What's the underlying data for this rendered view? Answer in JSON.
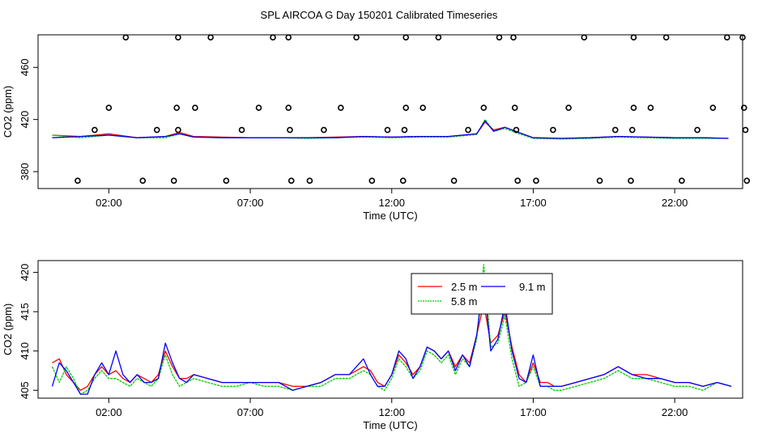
{
  "title": "SPL AIRCOA G  Day 150201  Calibrated Timeseries",
  "colors": {
    "series_2_5": "#ff0000",
    "series_5_8": "#00cc00",
    "series_9_1": "#0000ff",
    "axis": "#000000",
    "background": "#ffffff"
  },
  "chart_data": [
    {
      "type": "scatter+line",
      "xlabel": "Time (UTC)",
      "ylabel": "CO2 (ppm)",
      "x_unit": "hours UTC",
      "xlim": [
        -0.5,
        24.4
      ],
      "ylim": [
        367,
        485
      ],
      "xticks": [
        2,
        7,
        12,
        17,
        22
      ],
      "xtick_labels": [
        "02:00",
        "07:00",
        "12:00",
        "17:00",
        "22:00"
      ],
      "yticks": [
        380,
        420,
        460
      ],
      "ytick_labels": [
        "380",
        "420",
        "460"
      ],
      "calibration_points": [
        {
          "x": 0.9,
          "y": 373
        },
        {
          "x": 1.5,
          "y": 412
        },
        {
          "x": 2.0,
          "y": 429
        },
        {
          "x": 2.6,
          "y": 483
        },
        {
          "x": 3.2,
          "y": 373
        },
        {
          "x": 3.7,
          "y": 412
        },
        {
          "x": 4.3,
          "y": 373
        },
        {
          "x": 4.4,
          "y": 429
        },
        {
          "x": 4.45,
          "y": 412
        },
        {
          "x": 4.45,
          "y": 483
        },
        {
          "x": 5.05,
          "y": 429
        },
        {
          "x": 5.6,
          "y": 483
        },
        {
          "x": 6.15,
          "y": 373
        },
        {
          "x": 6.7,
          "y": 412
        },
        {
          "x": 7.3,
          "y": 429
        },
        {
          "x": 7.8,
          "y": 483
        },
        {
          "x": 8.35,
          "y": 429
        },
        {
          "x": 8.35,
          "y": 483
        },
        {
          "x": 8.4,
          "y": 412
        },
        {
          "x": 8.45,
          "y": 373
        },
        {
          "x": 9.1,
          "y": 373
        },
        {
          "x": 9.6,
          "y": 412
        },
        {
          "x": 10.2,
          "y": 429
        },
        {
          "x": 10.75,
          "y": 483
        },
        {
          "x": 11.3,
          "y": 373
        },
        {
          "x": 11.85,
          "y": 412
        },
        {
          "x": 12.4,
          "y": 373
        },
        {
          "x": 12.45,
          "y": 412
        },
        {
          "x": 12.5,
          "y": 429
        },
        {
          "x": 12.5,
          "y": 483
        },
        {
          "x": 13.1,
          "y": 429
        },
        {
          "x": 13.65,
          "y": 483
        },
        {
          "x": 14.2,
          "y": 373
        },
        {
          "x": 14.7,
          "y": 412
        },
        {
          "x": 15.25,
          "y": 429
        },
        {
          "x": 15.8,
          "y": 483
        },
        {
          "x": 16.3,
          "y": 483
        },
        {
          "x": 16.35,
          "y": 429
        },
        {
          "x": 16.4,
          "y": 412
        },
        {
          "x": 16.45,
          "y": 373
        },
        {
          "x": 17.1,
          "y": 373
        },
        {
          "x": 17.7,
          "y": 412
        },
        {
          "x": 18.25,
          "y": 429
        },
        {
          "x": 18.8,
          "y": 483
        },
        {
          "x": 19.35,
          "y": 373
        },
        {
          "x": 19.9,
          "y": 412
        },
        {
          "x": 20.45,
          "y": 373
        },
        {
          "x": 20.5,
          "y": 412
        },
        {
          "x": 20.55,
          "y": 429
        },
        {
          "x": 20.55,
          "y": 483
        },
        {
          "x": 21.15,
          "y": 429
        },
        {
          "x": 21.7,
          "y": 483
        },
        {
          "x": 22.25,
          "y": 373
        },
        {
          "x": 22.8,
          "y": 412
        },
        {
          "x": 23.35,
          "y": 429
        },
        {
          "x": 23.85,
          "y": 483
        },
        {
          "x": 24.4,
          "y": 483
        },
        {
          "x": 24.45,
          "y": 429
        },
        {
          "x": 24.5,
          "y": 412
        },
        {
          "x": 24.55,
          "y": 373
        }
      ],
      "series": [
        {
          "name": "2.5 m",
          "color": "#ff0000",
          "x": [
            0,
            1,
            2,
            3,
            4,
            4.5,
            5,
            6,
            7,
            8,
            9,
            10,
            11,
            12,
            13,
            14,
            15,
            15.3,
            15.6,
            16,
            16.5,
            17,
            18,
            19,
            20,
            21,
            22,
            23,
            23.9
          ],
          "y": [
            408,
            407,
            409,
            406,
            407,
            410,
            407,
            406.5,
            406,
            406,
            406,
            406.5,
            407,
            406.5,
            407,
            407,
            409,
            418,
            412,
            414,
            410,
            406,
            405.5,
            406,
            407,
            406.5,
            406,
            406,
            405.5
          ]
        },
        {
          "name": "5.8 m",
          "color": "#00cc00",
          "x": [
            0,
            1,
            2,
            3,
            4,
            4.5,
            5,
            6,
            7,
            8,
            9,
            10,
            11,
            12,
            13,
            14,
            15,
            15.3,
            15.6,
            16,
            16.5,
            17,
            18,
            19,
            20,
            21,
            22,
            23,
            23.9
          ],
          "y": [
            408,
            406,
            408,
            406,
            406,
            409,
            406.5,
            406,
            406,
            406,
            405.5,
            406,
            406.5,
            406,
            406.5,
            406.5,
            408.5,
            420,
            411,
            413,
            409,
            405.5,
            405,
            405.5,
            406.5,
            406,
            405.5,
            405.5,
            405.5
          ]
        },
        {
          "name": "9.1 m",
          "color": "#0000ff",
          "x": [
            0,
            1,
            2,
            3,
            4,
            4.5,
            5,
            6,
            7,
            8,
            9,
            10,
            11,
            12,
            13,
            14,
            15,
            15.3,
            15.6,
            16,
            16.5,
            17,
            18,
            19,
            20,
            21,
            22,
            23,
            23.9
          ],
          "y": [
            406,
            407,
            408,
            406,
            407,
            409,
            406.5,
            406,
            406,
            406,
            406,
            406,
            407,
            406.5,
            407,
            407,
            409,
            419,
            411,
            414,
            410,
            406,
            405.5,
            406,
            407,
            406.5,
            406,
            406,
            405.5
          ]
        }
      ]
    },
    {
      "type": "line",
      "xlabel": "Time (UTC)",
      "ylabel": "CO2 (ppm)",
      "x_unit": "hours UTC",
      "xlim": [
        -0.5,
        24.4
      ],
      "ylim": [
        404,
        421.5
      ],
      "xticks": [
        2,
        7,
        12,
        17,
        22
      ],
      "xtick_labels": [
        "02:00",
        "07:00",
        "12:00",
        "17:00",
        "22:00"
      ],
      "yticks": [
        405,
        410,
        415,
        420
      ],
      "ytick_labels": [
        "405",
        "410",
        "415",
        "420"
      ],
      "legend": {
        "placement": "top-right of center",
        "entries": [
          "2.5 m",
          "5.8 m",
          "9.1 m"
        ]
      },
      "series": [
        {
          "name": "2.5 m",
          "color": "#ff0000",
          "x": [
            0,
            0.25,
            0.5,
            0.75,
            1,
            1.25,
            1.5,
            1.75,
            2,
            2.25,
            2.5,
            2.75,
            3,
            3.25,
            3.5,
            3.75,
            4,
            4.25,
            4.5,
            4.75,
            5,
            5.5,
            6,
            6.5,
            7,
            7.5,
            8,
            8.5,
            9,
            9.5,
            10,
            10.5,
            11,
            11.25,
            11.5,
            11.75,
            12,
            12.25,
            12.5,
            12.75,
            13,
            13.25,
            13.5,
            13.75,
            14,
            14.25,
            14.5,
            14.75,
            15,
            15.25,
            15.5,
            15.75,
            16,
            16.25,
            16.5,
            16.75,
            17,
            17.25,
            17.5,
            17.75,
            18,
            18.5,
            19,
            19.5,
            20,
            20.5,
            21,
            21.5,
            22,
            22.5,
            23,
            23.5,
            24
          ],
          "y": [
            408.5,
            409,
            407,
            406,
            405,
            405.5,
            407,
            408,
            407,
            407.5,
            406.5,
            406,
            407,
            406.5,
            406,
            407,
            410,
            408,
            406.5,
            406.5,
            407,
            406.5,
            406,
            406,
            406,
            406,
            406,
            405.5,
            405.5,
            406,
            407,
            407,
            408,
            407.5,
            406,
            405.5,
            407,
            409.5,
            408.5,
            407,
            408,
            410.5,
            410,
            409,
            410,
            408,
            409.5,
            408.5,
            412,
            416,
            411,
            412,
            415,
            410.5,
            407,
            406,
            408.5,
            406,
            406,
            405.5,
            405.5,
            406,
            406.5,
            407,
            408,
            407,
            407,
            406.5,
            406,
            406,
            405.5,
            406,
            405.5
          ]
        },
        {
          "name": "5.8 m",
          "color": "#00cc00",
          "x": [
            0,
            0.25,
            0.5,
            0.75,
            1,
            1.25,
            1.5,
            1.75,
            2,
            2.25,
            2.5,
            2.75,
            3,
            3.25,
            3.5,
            3.75,
            4,
            4.25,
            4.5,
            4.75,
            5,
            5.5,
            6,
            6.5,
            7,
            7.5,
            8,
            8.5,
            9,
            9.5,
            10,
            10.5,
            11,
            11.25,
            11.5,
            11.75,
            12,
            12.25,
            12.5,
            12.75,
            13,
            13.25,
            13.5,
            13.75,
            14,
            14.25,
            14.5,
            14.75,
            15,
            15.25,
            15.5,
            15.75,
            16,
            16.25,
            16.5,
            16.75,
            17,
            17.25,
            17.5,
            17.75,
            18,
            18.5,
            19,
            19.5,
            20,
            20.5,
            21,
            21.5,
            22,
            22.5,
            23,
            23.5,
            24
          ],
          "y": [
            408,
            406,
            408,
            406.5,
            404.5,
            405,
            406.5,
            407.5,
            406.5,
            406.5,
            406,
            405.5,
            406.5,
            406,
            405.5,
            406.5,
            409.5,
            407,
            405.5,
            406,
            406.5,
            406,
            405.5,
            405.5,
            406,
            405.5,
            405.5,
            405,
            405.5,
            405.5,
            406.5,
            406.5,
            407.5,
            407,
            405.5,
            405,
            406.5,
            409,
            408,
            406.5,
            407.5,
            410,
            409.5,
            408.5,
            409.5,
            407,
            409,
            408,
            411.5,
            421,
            410.5,
            411,
            414.5,
            409,
            405.5,
            406,
            408,
            405.5,
            405.5,
            405,
            405,
            405.5,
            406,
            406.5,
            407.5,
            406.5,
            406.5,
            406,
            405.5,
            405.5,
            405,
            406,
            405.5
          ]
        },
        {
          "name": "9.1 m",
          "color": "#0000ff",
          "x": [
            0,
            0.25,
            0.5,
            0.75,
            1,
            1.25,
            1.5,
            1.75,
            2,
            2.25,
            2.5,
            2.75,
            3,
            3.25,
            3.5,
            3.75,
            4,
            4.25,
            4.5,
            4.75,
            5,
            5.5,
            6,
            6.5,
            7,
            7.5,
            8,
            8.5,
            9,
            9.5,
            10,
            10.5,
            11,
            11.25,
            11.5,
            11.75,
            12,
            12.25,
            12.5,
            12.75,
            13,
            13.25,
            13.5,
            13.75,
            14,
            14.25,
            14.5,
            14.75,
            15,
            15.25,
            15.5,
            15.75,
            16,
            16.25,
            16.5,
            16.75,
            17,
            17.25,
            17.5,
            17.75,
            18,
            18.5,
            19,
            19.5,
            20,
            20.5,
            21,
            21.5,
            22,
            22.5,
            23,
            23.5,
            24
          ],
          "y": [
            405.5,
            408.5,
            407.5,
            406,
            404.5,
            404.5,
            407,
            408.5,
            407,
            410,
            407,
            406,
            407,
            406,
            406,
            406.5,
            411,
            408.5,
            406.5,
            406,
            407,
            406.5,
            406,
            406,
            406,
            406,
            406,
            405,
            405.5,
            406,
            407,
            407,
            409,
            407,
            405.5,
            405.5,
            407,
            410,
            409,
            406.5,
            408,
            410.5,
            410,
            409,
            410,
            407.5,
            409.5,
            408,
            412,
            419,
            410,
            411.5,
            416,
            410,
            406.5,
            406,
            409.5,
            405.5,
            405.5,
            405.5,
            405.5,
            406,
            406.5,
            407,
            408,
            407,
            406.5,
            406.5,
            406,
            406,
            405.5,
            406,
            405.5
          ]
        }
      ]
    }
  ]
}
